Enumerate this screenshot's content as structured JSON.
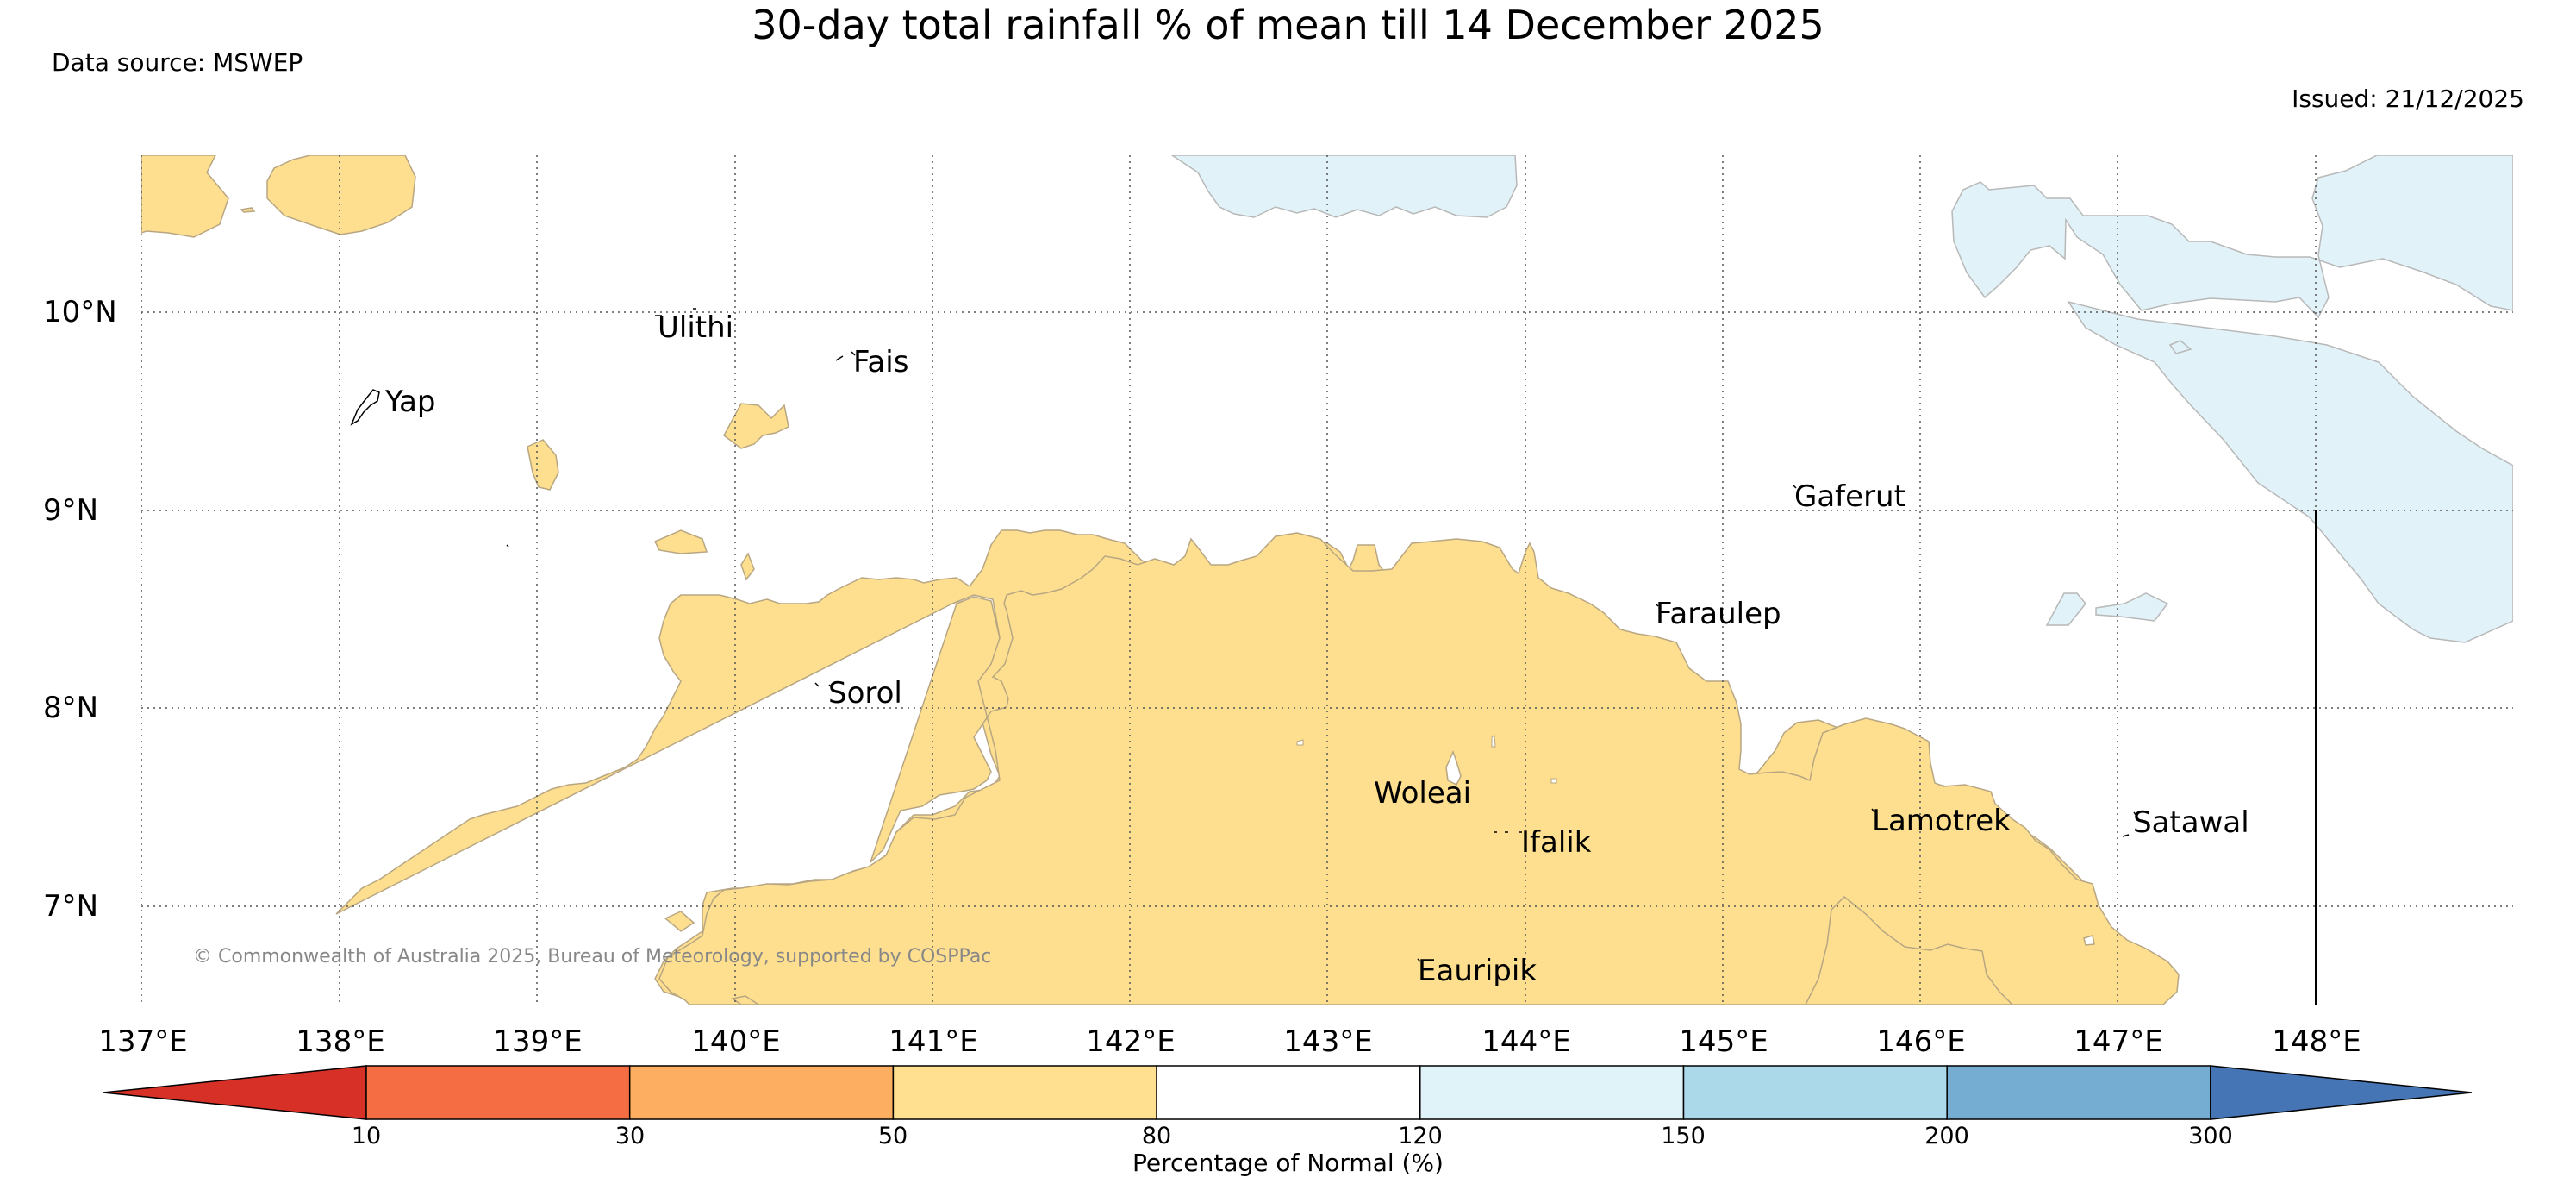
{
  "title": "30-day total rainfall % of mean till 14 December 2025",
  "data_source": "Data source: MSWEP",
  "issued": "Issued: 21/12/2025",
  "copyright": "© Commonwealth of Australia 2025, Bureau of Meteorology, supported by COSPPac",
  "map": {
    "lon_range": [
      137,
      149
    ],
    "lat_range": [
      6.5,
      10.8
    ],
    "lon_ticks": [
      "137°E",
      "138°E",
      "139°E",
      "140°E",
      "141°E",
      "142°E",
      "143°E",
      "144°E",
      "145°E",
      "146°E",
      "147°E",
      "148°E"
    ],
    "lat_ticks": [
      "10°N",
      "9°N",
      "8°N",
      "7°N"
    ],
    "grid": "dotted",
    "places": [
      "Ulithi",
      "Fais",
      "Yap",
      "Gaferut",
      "Faraulep",
      "Sorol",
      "Woleai",
      "Ifalik",
      "Lamotrek",
      "Satawal",
      "Eauripik"
    ],
    "colors": {
      "dry_50_80": "#fddf8f",
      "wet_120_150": "#e1f3f9",
      "boundary": "#b8a682"
    }
  },
  "colorbar": {
    "label": "Percentage of Normal (%)",
    "ticks": [
      "10",
      "30",
      "50",
      "80",
      "120",
      "150",
      "200",
      "300"
    ],
    "colors": [
      "#d73027",
      "#f46d43",
      "#fdae61",
      "#fee090",
      "#ffffff",
      "#e0f3f8",
      "#abd9e9",
      "#74add1",
      "#4575b4"
    ]
  }
}
